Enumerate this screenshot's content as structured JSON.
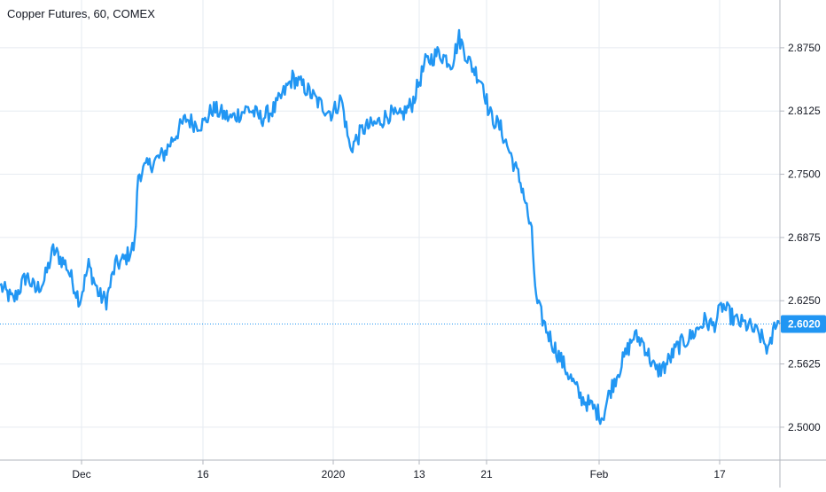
{
  "chart_title": "Copper Futures, 60, COMEX",
  "current_price_label": "2.6020",
  "colors": {
    "line": "#2196F3",
    "grid": "#E6EBF1",
    "axis_text": "#131722",
    "background": "#FFFFFF",
    "price_tag": "#2196F3"
  },
  "chart_data": {
    "type": "line",
    "title": "Copper Futures, 60, COMEX",
    "xlabel": "",
    "ylabel": "",
    "ylim": [
      2.4675,
      2.9222
    ],
    "y_ticks": [
      2.5,
      2.5625,
      2.625,
      2.6875,
      2.75,
      2.8125,
      2.875
    ],
    "y_tick_labels": [
      "2.5000",
      "2.5625",
      "2.6250",
      "2.6875",
      "2.7500",
      "2.8125",
      "2.8750"
    ],
    "x_ticks": [
      {
        "label": "Dec",
        "index": 92
      },
      {
        "label": "16",
        "index": 229
      },
      {
        "label": "2020",
        "index": 376
      },
      {
        "label": "13",
        "index": 473
      },
      {
        "label": "21",
        "index": 549
      },
      {
        "label": "Feb",
        "index": 676
      },
      {
        "label": "17",
        "index": 812
      }
    ],
    "x_range": [
      0,
      880
    ],
    "grid": true,
    "current_value": 2.602,
    "series": [
      {
        "color": "#2196F3",
        "points": [
          [
            0,
            2.64
          ],
          [
            15,
            2.625
          ],
          [
            30,
            2.65
          ],
          [
            40,
            2.635
          ],
          [
            50,
            2.645
          ],
          [
            60,
            2.675
          ],
          [
            75,
            2.66
          ],
          [
            90,
            2.625
          ],
          [
            100,
            2.66
          ],
          [
            112,
            2.63
          ],
          [
            120,
            2.625
          ],
          [
            130,
            2.66
          ],
          [
            140,
            2.665
          ],
          [
            152,
            2.68
          ],
          [
            156,
            2.75
          ],
          [
            170,
            2.76
          ],
          [
            185,
            2.77
          ],
          [
            195,
            2.785
          ],
          [
            210,
            2.805
          ],
          [
            220,
            2.8
          ],
          [
            230,
            2.8
          ],
          [
            240,
            2.815
          ],
          [
            260,
            2.805
          ],
          [
            280,
            2.815
          ],
          [
            295,
            2.805
          ],
          [
            310,
            2.815
          ],
          [
            330,
            2.845
          ],
          [
            345,
            2.835
          ],
          [
            360,
            2.82
          ],
          [
            375,
            2.81
          ],
          [
            385,
            2.825
          ],
          [
            395,
            2.775
          ],
          [
            410,
            2.795
          ],
          [
            425,
            2.8
          ],
          [
            440,
            2.81
          ],
          [
            450,
            2.805
          ],
          [
            465,
            2.82
          ],
          [
            480,
            2.86
          ],
          [
            495,
            2.87
          ],
          [
            510,
            2.86
          ],
          [
            518,
            2.885
          ],
          [
            530,
            2.86
          ],
          [
            545,
            2.84
          ],
          [
            552,
            2.81
          ],
          [
            565,
            2.795
          ],
          [
            578,
            2.765
          ],
          [
            590,
            2.735
          ],
          [
            600,
            2.69
          ],
          [
            605,
            2.625
          ],
          [
            615,
            2.6
          ],
          [
            625,
            2.58
          ],
          [
            640,
            2.555
          ],
          [
            655,
            2.53
          ],
          [
            668,
            2.52
          ],
          [
            680,
            2.51
          ],
          [
            688,
            2.535
          ],
          [
            700,
            2.56
          ],
          [
            715,
            2.59
          ],
          [
            725,
            2.585
          ],
          [
            740,
            2.555
          ],
          [
            750,
            2.56
          ],
          [
            765,
            2.58
          ],
          [
            780,
            2.59
          ],
          [
            795,
            2.605
          ],
          [
            805,
            2.6
          ],
          [
            815,
            2.62
          ],
          [
            830,
            2.605
          ],
          [
            845,
            2.6
          ],
          [
            858,
            2.59
          ],
          [
            868,
            2.575
          ],
          [
            875,
            2.605
          ],
          [
            880,
            2.602
          ]
        ]
      }
    ]
  }
}
